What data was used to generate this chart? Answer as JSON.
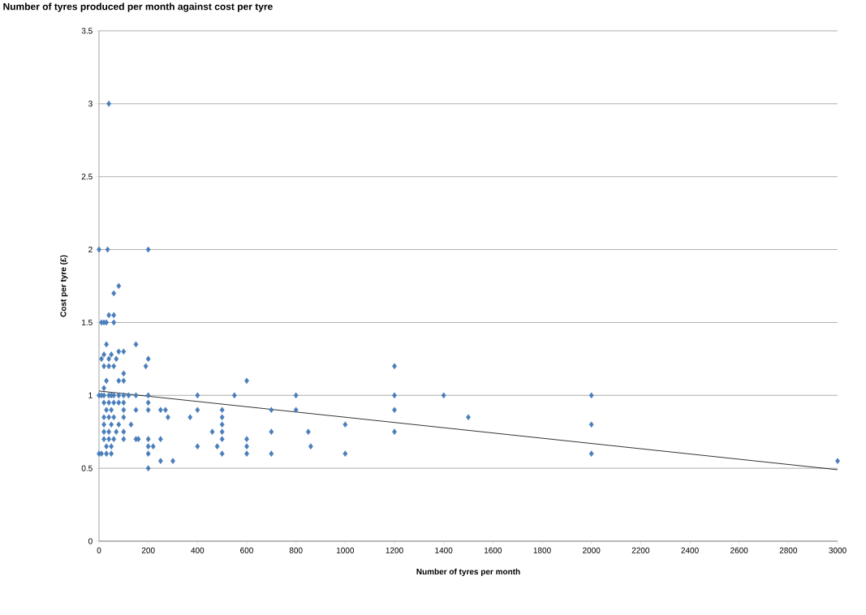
{
  "chart_data": {
    "type": "scatter",
    "title": "Number of tyres produced per month against cost per tyre",
    "xlabel": "Number of tyres per month",
    "ylabel": "Cost per tyre (£)",
    "xlim": [
      0,
      3000
    ],
    "xticks": [
      0,
      200,
      400,
      600,
      800,
      1000,
      1200,
      1400,
      1600,
      1800,
      2000,
      2200,
      2400,
      2600,
      2800,
      3000
    ],
    "ylim": [
      0,
      3.5
    ],
    "yticks": [
      0,
      0.5,
      1,
      1.5,
      2,
      2.5,
      3,
      3.5
    ],
    "grid": "y",
    "marker": "diamond",
    "series": [
      {
        "color": "#4a7ebb",
        "x": [
          40,
          0,
          35,
          200,
          80,
          60,
          10,
          20,
          30,
          40,
          60,
          60,
          150,
          30,
          10,
          20,
          40,
          50,
          80,
          100,
          70,
          20,
          40,
          60,
          200,
          190,
          100,
          100,
          80,
          30,
          20,
          0,
          10,
          20,
          40,
          50,
          60,
          80,
          100,
          120,
          150,
          200,
          400,
          550,
          800,
          1200,
          1400,
          2000,
          600,
          1200,
          20,
          40,
          60,
          80,
          100,
          200,
          30,
          50,
          100,
          150,
          200,
          250,
          270,
          400,
          500,
          700,
          800,
          1200,
          20,
          40,
          60,
          100,
          280,
          370,
          500,
          1500,
          20,
          50,
          80,
          130,
          500,
          1000,
          2000,
          20,
          40,
          70,
          100,
          460,
          500,
          700,
          850,
          1200,
          20,
          40,
          60,
          100,
          150,
          160,
          200,
          250,
          500,
          600,
          30,
          50,
          200,
          220,
          400,
          480,
          600,
          860,
          0,
          10,
          30,
          50,
          200,
          500,
          600,
          700,
          1000,
          2000,
          250,
          300,
          3000,
          200
        ],
        "values": [
          3,
          2,
          2,
          2,
          1.75,
          1.7,
          1.5,
          1.5,
          1.5,
          1.55,
          1.55,
          1.5,
          1.35,
          1.35,
          1.25,
          1.28,
          1.25,
          1.28,
          1.3,
          1.3,
          1.25,
          1.2,
          1.2,
          1.2,
          1.25,
          1.2,
          1.15,
          1.1,
          1.1,
          1.1,
          1.05,
          1,
          1,
          1,
          1,
          1,
          1,
          1,
          1,
          1,
          1,
          1,
          1,
          1,
          1,
          1,
          1,
          1,
          1.1,
          1.2,
          0.95,
          0.95,
          0.95,
          0.95,
          0.95,
          0.95,
          0.9,
          0.9,
          0.9,
          0.9,
          0.9,
          0.9,
          0.9,
          0.9,
          0.9,
          0.9,
          0.9,
          0.9,
          0.85,
          0.85,
          0.85,
          0.85,
          0.85,
          0.85,
          0.85,
          0.85,
          0.8,
          0.8,
          0.8,
          0.8,
          0.8,
          0.8,
          0.8,
          0.75,
          0.75,
          0.75,
          0.75,
          0.75,
          0.75,
          0.75,
          0.75,
          0.75,
          0.7,
          0.7,
          0.7,
          0.7,
          0.7,
          0.7,
          0.7,
          0.7,
          0.7,
          0.7,
          0.65,
          0.65,
          0.65,
          0.65,
          0.65,
          0.65,
          0.65,
          0.65,
          0.6,
          0.6,
          0.6,
          0.6,
          0.6,
          0.6,
          0.6,
          0.6,
          0.6,
          0.6,
          0.55,
          0.55,
          0.55,
          0.5
        ]
      },
      {
        "type": "line",
        "color": "#000000",
        "marker": "none",
        "x": [
          0,
          3000
        ],
        "values": [
          1.03,
          0.49
        ]
      }
    ]
  }
}
